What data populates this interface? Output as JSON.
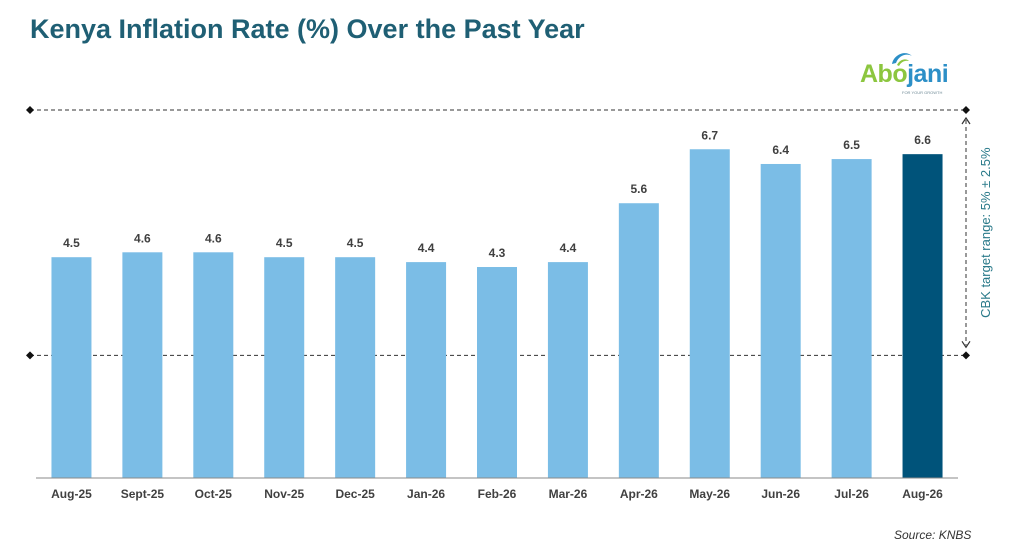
{
  "title": "Kenya Inflation Rate (%) Over the Past Year",
  "source": "Source: KNBS",
  "logo": {
    "text_part1": "Abo",
    "text_part2": "jani",
    "tagline": "FOR YOUR GROWTH"
  },
  "colors": {
    "bar": "#7bbde6",
    "bar_highlight": "#00537a",
    "title": "#1f5f74",
    "band_label": "#2a7a8a"
  },
  "chart_data": {
    "type": "bar",
    "title": "Kenya Inflation Rate (%) Over the Past Year",
    "categories": [
      "Aug-25",
      "Sept-25",
      "Oct-25",
      "Nov-25",
      "Dec-25",
      "Jan-26",
      "Feb-26",
      "Mar-26",
      "Apr-26",
      "May-26",
      "Jun-26",
      "Jul-26",
      "Aug-26"
    ],
    "values": [
      4.5,
      4.6,
      4.6,
      4.5,
      4.5,
      4.4,
      4.3,
      4.4,
      5.6,
      6.7,
      6.4,
      6.5,
      6.6
    ],
    "highlight_index": 12,
    "ylim": [
      0,
      7.5
    ],
    "grid": false,
    "target_band": {
      "lower": 2.5,
      "upper": 7.5,
      "label": "CBK target range: 5% ± 2.5%"
    }
  }
}
